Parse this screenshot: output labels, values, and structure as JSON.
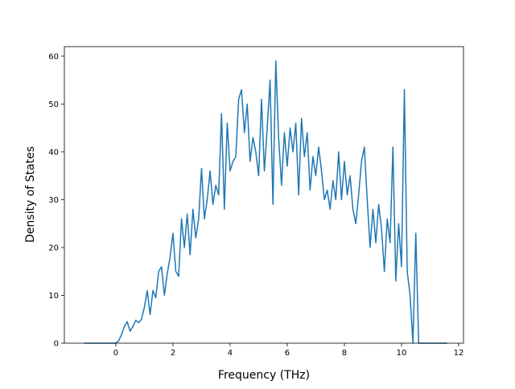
{
  "chart_data": {
    "type": "line",
    "xlabel": "Frequency (THz)",
    "ylabel": "Density of States",
    "x": [
      -1.1,
      -1.0,
      -0.9,
      -0.8,
      -0.7,
      -0.6,
      -0.5,
      -0.4,
      -0.3,
      -0.2,
      -0.1,
      0.0,
      0.1,
      0.2,
      0.3,
      0.4,
      0.5,
      0.6,
      0.7,
      0.8,
      0.9,
      1.0,
      1.1,
      1.2,
      1.3,
      1.4,
      1.5,
      1.6,
      1.7,
      1.8,
      1.9,
      2.0,
      2.1,
      2.2,
      2.3,
      2.4,
      2.5,
      2.6,
      2.7,
      2.8,
      2.9,
      3.0,
      3.1,
      3.2,
      3.3,
      3.4,
      3.5,
      3.6,
      3.7,
      3.8,
      3.9,
      4.0,
      4.1,
      4.2,
      4.3,
      4.4,
      4.5,
      4.6,
      4.7,
      4.8,
      4.9,
      5.0,
      5.1,
      5.2,
      5.3,
      5.4,
      5.5,
      5.6,
      5.7,
      5.8,
      5.9,
      6.0,
      6.1,
      6.2,
      6.3,
      6.4,
      6.5,
      6.6,
      6.7,
      6.8,
      6.9,
      7.0,
      7.1,
      7.2,
      7.3,
      7.4,
      7.5,
      7.6,
      7.7,
      7.8,
      7.9,
      8.0,
      8.1,
      8.2,
      8.3,
      8.4,
      8.5,
      8.6,
      8.7,
      8.8,
      8.9,
      9.0,
      9.1,
      9.2,
      9.3,
      9.4,
      9.5,
      9.6,
      9.7,
      9.8,
      9.9,
      10.0,
      10.1,
      10.2,
      10.3,
      10.4,
      10.5,
      10.6,
      10.7,
      10.8,
      10.9,
      11.0,
      11.1,
      11.2,
      11.3,
      11.4,
      11.5,
      11.6
    ],
    "series": [
      {
        "color": "#1f77b4",
        "values": [
          0,
          0,
          0,
          0,
          0,
          0,
          0,
          0,
          0,
          0,
          0,
          0,
          0.5,
          1.8,
          3.5,
          4.5,
          2.5,
          3.5,
          4.8,
          4.3,
          5,
          7.5,
          11,
          6,
          11,
          9.5,
          15,
          16,
          10,
          14.5,
          18,
          23,
          15,
          14,
          26,
          20,
          27,
          18.5,
          28,
          22,
          26,
          36.5,
          26,
          30,
          36,
          29,
          33,
          31,
          48,
          28,
          46,
          36,
          38,
          39,
          51,
          53,
          44,
          50,
          38,
          43,
          40,
          35,
          51,
          36,
          45,
          55,
          29,
          59,
          43,
          33,
          44,
          37,
          45,
          40,
          46,
          31,
          47,
          39,
          44,
          32,
          39,
          35,
          41,
          36,
          30,
          32,
          28,
          34,
          30,
          40,
          30,
          38,
          31,
          35,
          28,
          25,
          31,
          38,
          41,
          30,
          20,
          28,
          21,
          29,
          24,
          15,
          26,
          21,
          41,
          13,
          25,
          16,
          53,
          15,
          10,
          0,
          23,
          0,
          0,
          0,
          0,
          0,
          0,
          0,
          0,
          0,
          0,
          0
        ]
      }
    ],
    "xlim": [
      -1.8,
      12.17
    ],
    "ylim": [
      0,
      62
    ],
    "xticks": [
      0,
      2,
      4,
      6,
      8,
      10,
      12
    ],
    "yticks": [
      0,
      10,
      20,
      30,
      40,
      50,
      60
    ]
  }
}
